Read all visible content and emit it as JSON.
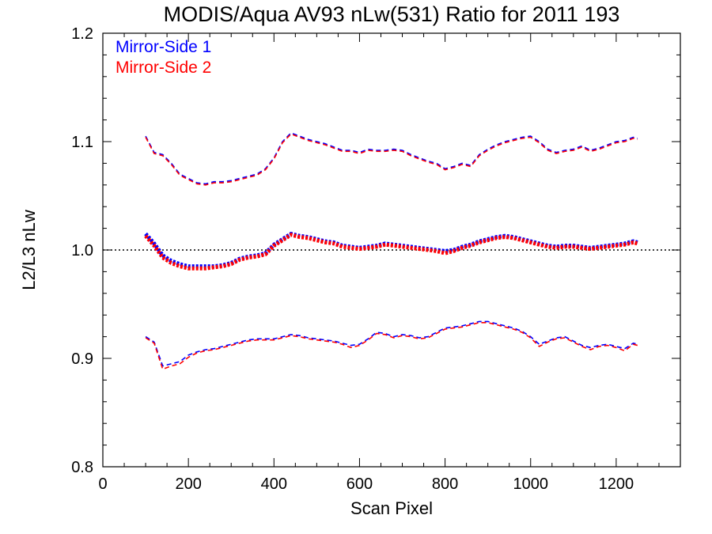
{
  "chart_data": {
    "type": "line",
    "title": "MODIS/Aqua AV93 nLw(531) Ratio for 2011 193",
    "xlabel": "Scan Pixel",
    "ylabel": "L2/L3 nLw",
    "xlim": [
      0,
      1350
    ],
    "ylim": [
      0.8,
      1.2
    ],
    "x_ticks": [
      0,
      200,
      400,
      600,
      800,
      1000,
      1200
    ],
    "x_tick_labels": [
      "0",
      "200",
      "400",
      "600",
      "800",
      "1000",
      "1200"
    ],
    "y_ticks": [
      0.8,
      0.9,
      1.0,
      1.1,
      1.2
    ],
    "y_tick_labels": [
      "0.8",
      "0.9",
      "1.0",
      "1.1",
      "1.2"
    ],
    "x_minor_step": 50,
    "y_minor_step": 0.02,
    "reference_line": 1.0,
    "grid": false,
    "legend_position": "top-left",
    "colors": {
      "ms1": "#0000ff",
      "ms2": "#ff0000",
      "reference": "#000000"
    },
    "x": [
      100,
      120,
      140,
      160,
      180,
      200,
      220,
      240,
      260,
      280,
      300,
      320,
      340,
      360,
      380,
      400,
      420,
      440,
      460,
      480,
      500,
      520,
      540,
      560,
      580,
      600,
      620,
      640,
      660,
      680,
      700,
      720,
      740,
      760,
      780,
      800,
      820,
      840,
      860,
      880,
      900,
      920,
      940,
      960,
      980,
      1000,
      1020,
      1040,
      1060,
      1080,
      1100,
      1120,
      1140,
      1160,
      1180,
      1200,
      1220,
      1240,
      1250
    ],
    "series": [
      {
        "name": "Mirror-Side 1",
        "role": "mean",
        "color": "#0000ff",
        "values": [
          1.015,
          1.006,
          0.995,
          0.99,
          0.987,
          0.985,
          0.985,
          0.985,
          0.985,
          0.986,
          0.988,
          0.992,
          0.994,
          0.995,
          0.997,
          1.005,
          1.01,
          1.015,
          1.013,
          1.012,
          1.01,
          1.008,
          1.007,
          1.004,
          1.003,
          1.002,
          1.003,
          1.004,
          1.006,
          1.005,
          1.004,
          1.003,
          1.002,
          1.001,
          1.0,
          0.999,
          1.0,
          1.003,
          1.005,
          1.008,
          1.01,
          1.012,
          1.013,
          1.012,
          1.01,
          1.008,
          1.006,
          1.004,
          1.003,
          1.004,
          1.004,
          1.003,
          1.002,
          1.003,
          1.004,
          1.005,
          1.006,
          1.008,
          1.007
        ]
      },
      {
        "name": "Mirror-Side 2",
        "role": "mean",
        "color": "#ff0000",
        "values": [
          1.013,
          1.004,
          0.993,
          0.988,
          0.985,
          0.983,
          0.983,
          0.983,
          0.984,
          0.985,
          0.987,
          0.991,
          0.993,
          0.994,
          0.996,
          1.004,
          1.009,
          1.014,
          1.012,
          1.011,
          1.009,
          1.007,
          1.006,
          1.003,
          1.002,
          1.001,
          1.002,
          1.003,
          1.005,
          1.004,
          1.003,
          1.002,
          1.001,
          1.0,
          0.999,
          0.997,
          0.999,
          1.002,
          1.004,
          1.007,
          1.009,
          1.011,
          1.012,
          1.011,
          1.009,
          1.007,
          1.005,
          1.003,
          1.002,
          1.003,
          1.003,
          1.002,
          1.001,
          1.002,
          1.003,
          1.004,
          1.005,
          1.007,
          1.006
        ]
      },
      {
        "role": "upper",
        "color": "#0000ff",
        "values": [
          1.105,
          1.09,
          1.088,
          1.08,
          1.07,
          1.066,
          1.062,
          1.061,
          1.063,
          1.063,
          1.064,
          1.066,
          1.068,
          1.07,
          1.075,
          1.085,
          1.1,
          1.108,
          1.105,
          1.102,
          1.1,
          1.098,
          1.095,
          1.092,
          1.092,
          1.09,
          1.093,
          1.092,
          1.092,
          1.093,
          1.092,
          1.088,
          1.085,
          1.082,
          1.08,
          1.075,
          1.077,
          1.08,
          1.078,
          1.088,
          1.093,
          1.097,
          1.1,
          1.102,
          1.104,
          1.105,
          1.1,
          1.093,
          1.09,
          1.092,
          1.093,
          1.096,
          1.092,
          1.094,
          1.097,
          1.1,
          1.101,
          1.104,
          1.103
        ]
      },
      {
        "role": "upper",
        "color": "#ff0000",
        "values": [
          1.104,
          1.089,
          1.087,
          1.079,
          1.069,
          1.065,
          1.061,
          1.06,
          1.062,
          1.062,
          1.063,
          1.065,
          1.067,
          1.069,
          1.074,
          1.084,
          1.099,
          1.107,
          1.104,
          1.101,
          1.099,
          1.097,
          1.094,
          1.091,
          1.091,
          1.089,
          1.092,
          1.091,
          1.091,
          1.092,
          1.091,
          1.087,
          1.084,
          1.081,
          1.079,
          1.074,
          1.076,
          1.079,
          1.077,
          1.087,
          1.092,
          1.096,
          1.099,
          1.101,
          1.103,
          1.104,
          1.099,
          1.092,
          1.089,
          1.091,
          1.092,
          1.095,
          1.091,
          1.093,
          1.096,
          1.099,
          1.1,
          1.103,
          1.102
        ]
      },
      {
        "role": "lower",
        "color": "#0000ff",
        "values": [
          0.92,
          0.915,
          0.893,
          0.895,
          0.897,
          0.903,
          0.906,
          0.908,
          0.909,
          0.911,
          0.913,
          0.915,
          0.917,
          0.918,
          0.918,
          0.918,
          0.92,
          0.922,
          0.921,
          0.919,
          0.918,
          0.917,
          0.916,
          0.914,
          0.912,
          0.913,
          0.918,
          0.924,
          0.923,
          0.92,
          0.922,
          0.921,
          0.919,
          0.92,
          0.924,
          0.928,
          0.929,
          0.93,
          0.932,
          0.934,
          0.934,
          0.932,
          0.93,
          0.928,
          0.925,
          0.92,
          0.913,
          0.916,
          0.919,
          0.92,
          0.916,
          0.912,
          0.91,
          0.912,
          0.913,
          0.911,
          0.909,
          0.914,
          0.913
        ]
      },
      {
        "role": "lower",
        "color": "#ff0000",
        "values": [
          0.919,
          0.914,
          0.89,
          0.893,
          0.895,
          0.901,
          0.905,
          0.907,
          0.908,
          0.91,
          0.912,
          0.914,
          0.916,
          0.917,
          0.917,
          0.917,
          0.919,
          0.921,
          0.92,
          0.918,
          0.917,
          0.916,
          0.915,
          0.913,
          0.91,
          0.912,
          0.917,
          0.923,
          0.922,
          0.919,
          0.921,
          0.92,
          0.918,
          0.919,
          0.923,
          0.927,
          0.928,
          0.929,
          0.931,
          0.933,
          0.933,
          0.931,
          0.929,
          0.927,
          0.924,
          0.919,
          0.911,
          0.915,
          0.918,
          0.919,
          0.915,
          0.911,
          0.908,
          0.911,
          0.912,
          0.91,
          0.907,
          0.913,
          0.912
        ]
      }
    ]
  }
}
